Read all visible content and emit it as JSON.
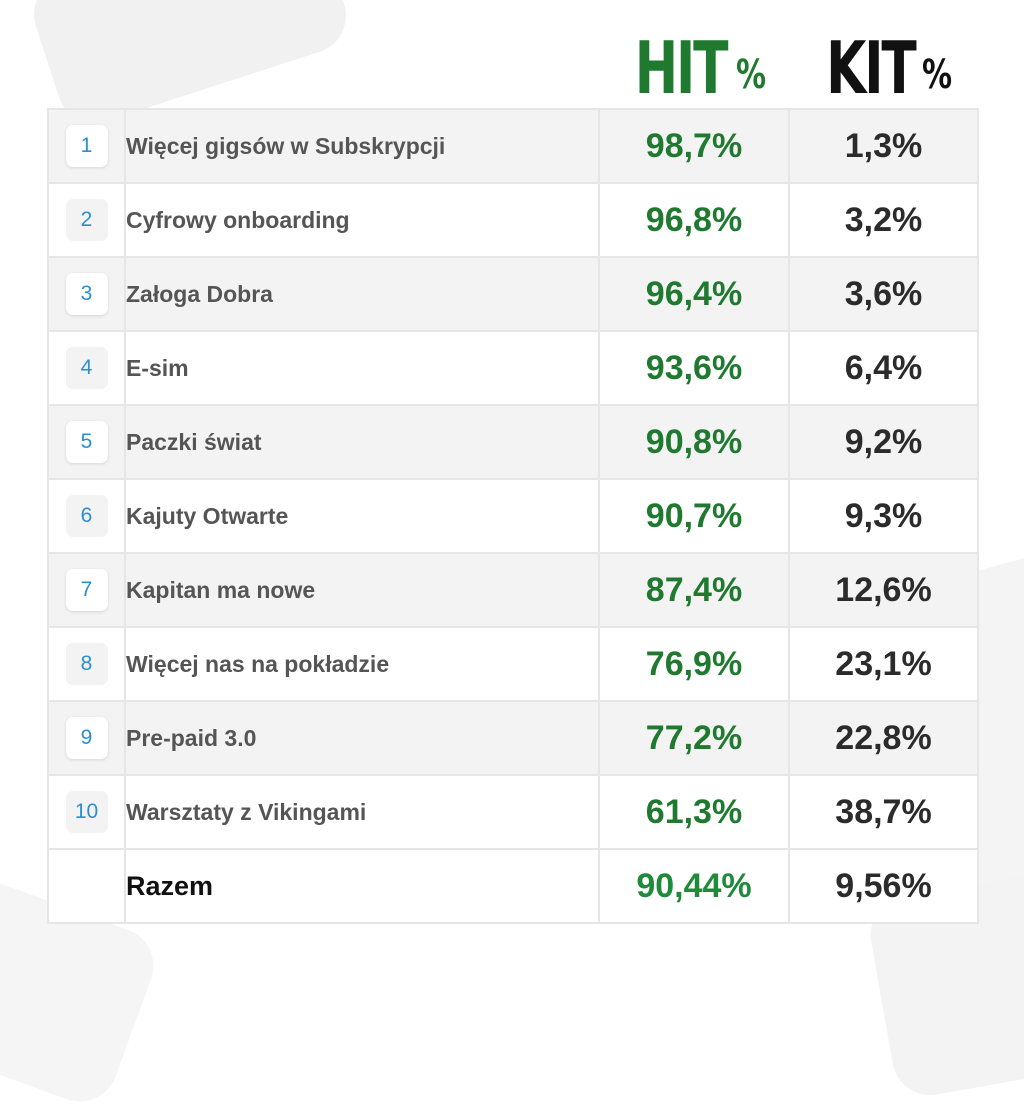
{
  "header": {
    "hit_label": "HIT",
    "kit_label": "KIT",
    "percent_sign": "%"
  },
  "rows": [
    {
      "rank": "1",
      "name": "Więcej gigsów w Subskrypcji",
      "hit": "98,7%",
      "kit": "1,3%"
    },
    {
      "rank": "2",
      "name": "Cyfrowy onboarding",
      "hit": "96,8%",
      "kit": "3,2%"
    },
    {
      "rank": "3",
      "name": "Załoga Dobra",
      "hit": "96,4%",
      "kit": "3,6%"
    },
    {
      "rank": "4",
      "name": "E-sim",
      "hit": "93,6%",
      "kit": "6,4%"
    },
    {
      "rank": "5",
      "name": "Paczki świat",
      "hit": "90,8%",
      "kit": "9,2%"
    },
    {
      "rank": "6",
      "name": "Kajuty Otwarte",
      "hit": "90,7%",
      "kit": "9,3%"
    },
    {
      "rank": "7",
      "name": "Kapitan ma nowe",
      "hit": "87,4%",
      "kit": "12,6%"
    },
    {
      "rank": "8",
      "name": "Więcej nas na pokładzie",
      "hit": "76,9%",
      "kit": "23,1%"
    },
    {
      "rank": "9",
      "name": "Pre-paid 3.0",
      "hit": "77,2%",
      "kit": "22,8%"
    },
    {
      "rank": "10",
      "name": "Warsztaty z Vikingami",
      "hit": "61,3%",
      "kit": "38,7%"
    }
  ],
  "total": {
    "label": "Razem",
    "hit": "90,44%",
    "kit": "9,56%"
  },
  "colors": {
    "hit": "#1f7a30",
    "kit": "#111111",
    "rank": "#2a8fd0"
  }
}
